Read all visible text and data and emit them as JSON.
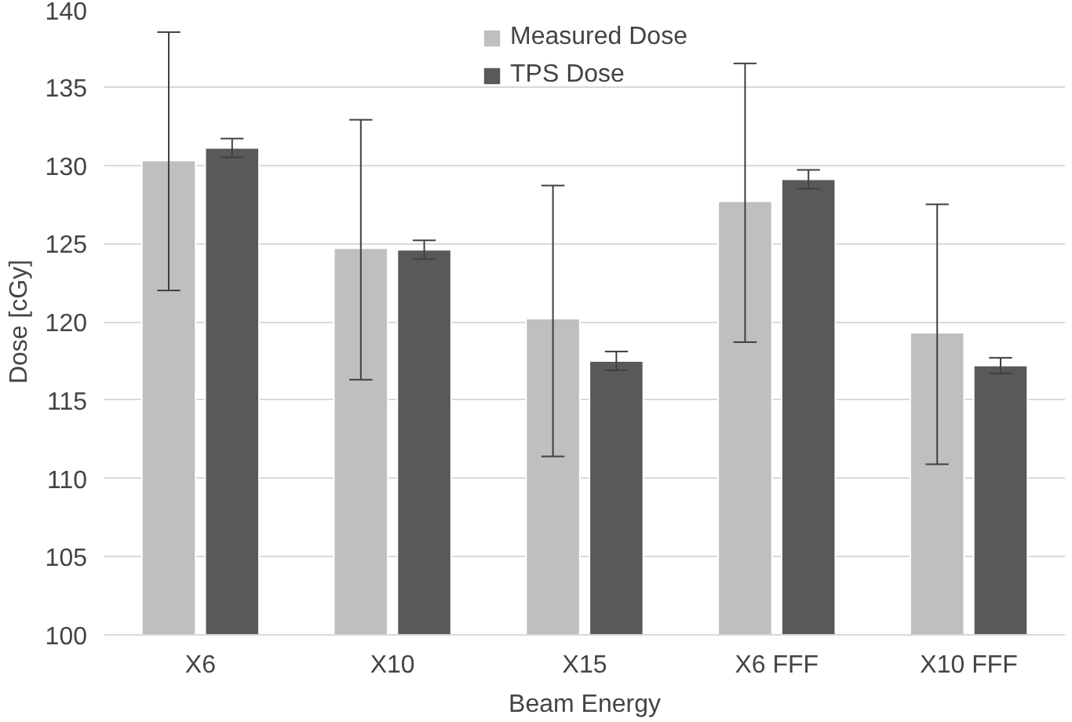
{
  "chart_data": {
    "type": "bar",
    "xlabel": "Beam Energy",
    "ylabel": "Dose [cGy]",
    "categories": [
      "X6",
      "X10",
      "X15",
      "X6 FFF",
      "X10 FFF"
    ],
    "series": [
      {
        "name": "Measured Dose",
        "color": "#bfbfbf",
        "values": [
          130.3,
          124.7,
          120.2,
          127.7,
          119.3
        ],
        "errors": [
          [
            122.0,
            138.5
          ],
          [
            116.3,
            132.9
          ],
          [
            111.4,
            128.7
          ],
          [
            118.7,
            136.5
          ],
          [
            110.9,
            127.5
          ]
        ]
      },
      {
        "name": "TPS Dose",
        "color": "#595959",
        "values": [
          131.1,
          124.6,
          117.5,
          129.1,
          117.2
        ],
        "errors": [
          [
            130.5,
            131.7
          ],
          [
            124.0,
            125.2
          ],
          [
            116.9,
            118.1
          ],
          [
            128.5,
            129.7
          ],
          [
            116.7,
            117.7
          ]
        ]
      }
    ],
    "ylim": [
      100,
      140
    ],
    "yticks": [
      100,
      105,
      110,
      115,
      120,
      125,
      130,
      135,
      140
    ],
    "grid": "y",
    "legend": "top"
  }
}
